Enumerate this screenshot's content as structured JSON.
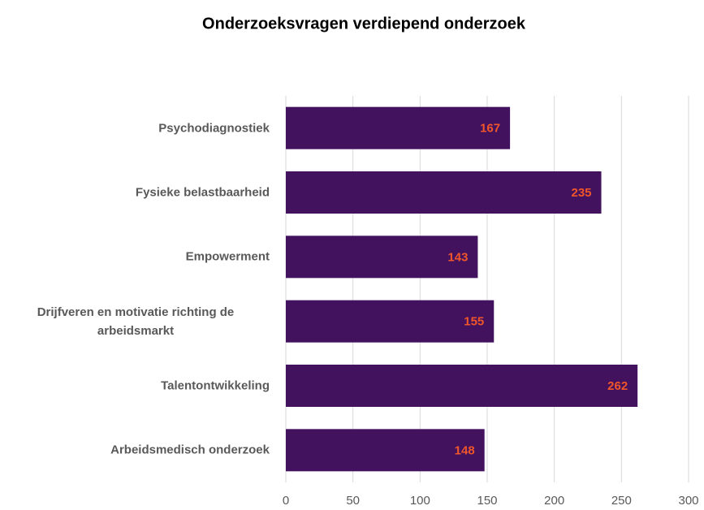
{
  "chart_data": {
    "type": "bar",
    "orientation": "horizontal",
    "title": "Onderzoeksvragen verdiepend onderzoek",
    "categories": [
      "Psychodiagnostiek",
      "Fysieke belastbaarheid",
      "Empowerment",
      "Drijfveren en motivatie richting de arbeidsmarkt",
      "Talentontwikkeling",
      "Arbeidsmedisch onderzoek"
    ],
    "values": [
      167,
      235,
      143,
      155,
      262,
      148
    ],
    "color": "#42125f",
    "label_color": "#f0562a",
    "xlim": [
      0,
      300
    ],
    "xticks": [
      0,
      50,
      100,
      150,
      200,
      250,
      300
    ],
    "grid": true
  }
}
